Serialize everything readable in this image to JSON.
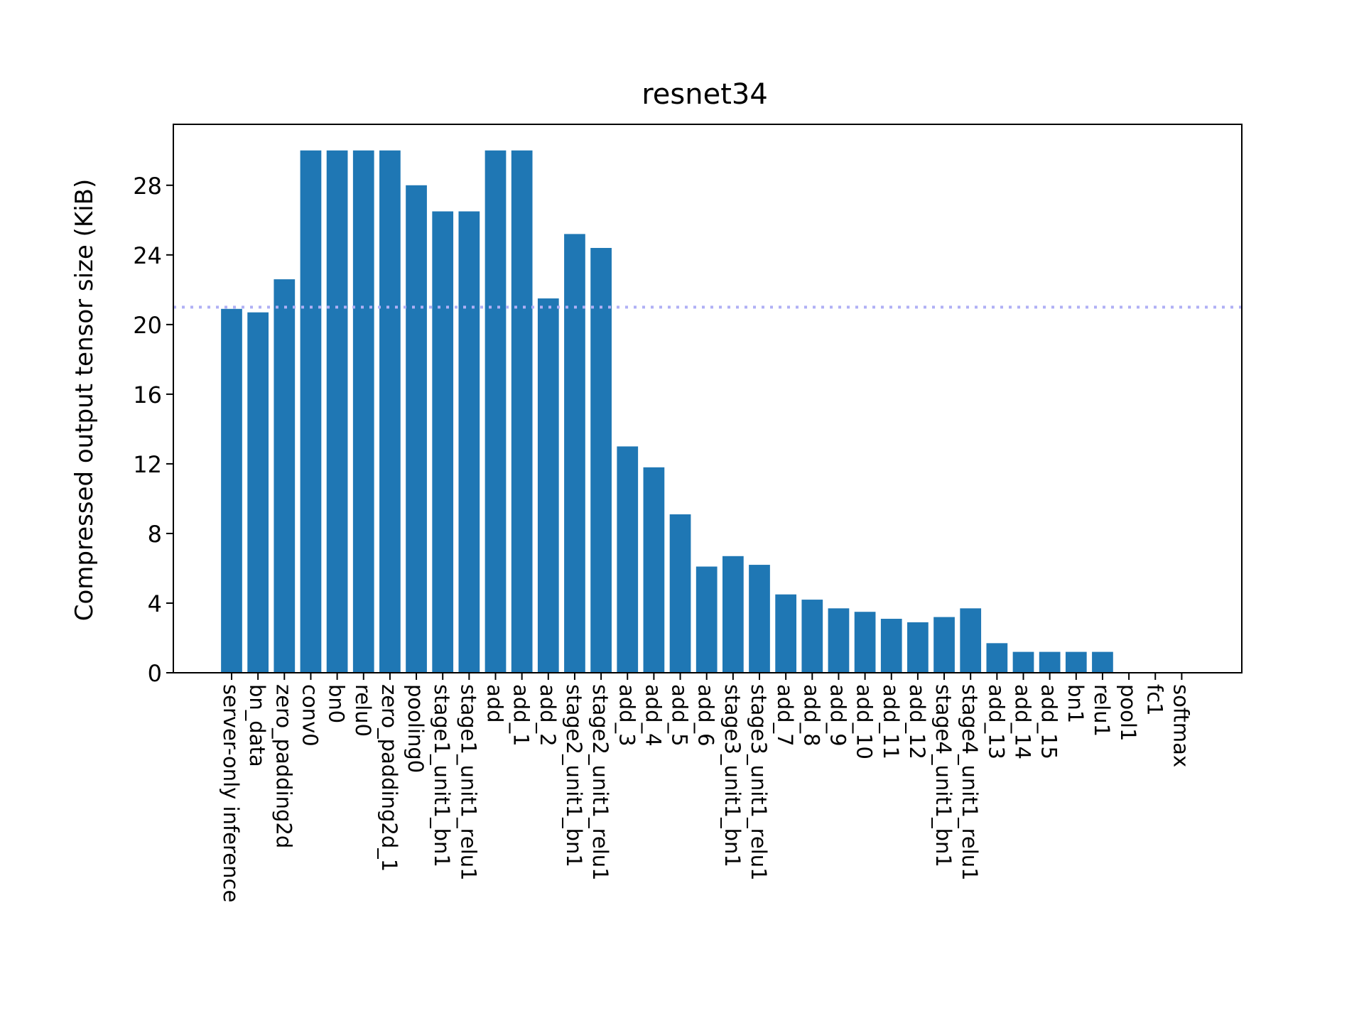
{
  "chart_data": {
    "type": "bar",
    "title": "resnet34",
    "xlabel": "",
    "ylabel": "Compressed output tensor size (KiB)",
    "ylim": [
      0,
      31.5
    ],
    "yticks": [
      0,
      4,
      8,
      12,
      16,
      20,
      24,
      28
    ],
    "grid": false,
    "bar_color": "#1f77b4",
    "reference_line": {
      "value": 21.0,
      "color": "#b0b0f5",
      "style": "dotted"
    },
    "categories": [
      "server-only inference",
      "bn_data",
      "zero_padding2d",
      "conv0",
      "bn0",
      "relu0",
      "zero_padding2d_1",
      "pooling0",
      "stage1_unit1_bn1",
      "stage1_unit1_relu1",
      "add",
      "add_1",
      "add_2",
      "stage2_unit1_bn1",
      "stage2_unit1_relu1",
      "add_3",
      "add_4",
      "add_5",
      "add_6",
      "stage3_unit1_bn1",
      "stage3_unit1_relu1",
      "add_7",
      "add_8",
      "add_9",
      "add_10",
      "add_11",
      "add_12",
      "stage4_unit1_bn1",
      "stage4_unit1_relu1",
      "add_13",
      "add_14",
      "add_15",
      "bn1",
      "relu1",
      "pool1",
      "fc1",
      "softmax"
    ],
    "values": [
      20.9,
      20.7,
      22.6,
      30.0,
      30.0,
      30.0,
      30.0,
      28.0,
      26.5,
      26.5,
      30.0,
      30.0,
      21.5,
      25.2,
      24.4,
      13.0,
      11.8,
      9.1,
      6.1,
      6.7,
      6.2,
      4.5,
      4.2,
      3.7,
      3.5,
      3.1,
      2.9,
      3.2,
      3.7,
      1.7,
      1.2,
      1.2,
      1.2,
      1.2,
      0.0,
      0.0,
      0.0
    ]
  }
}
